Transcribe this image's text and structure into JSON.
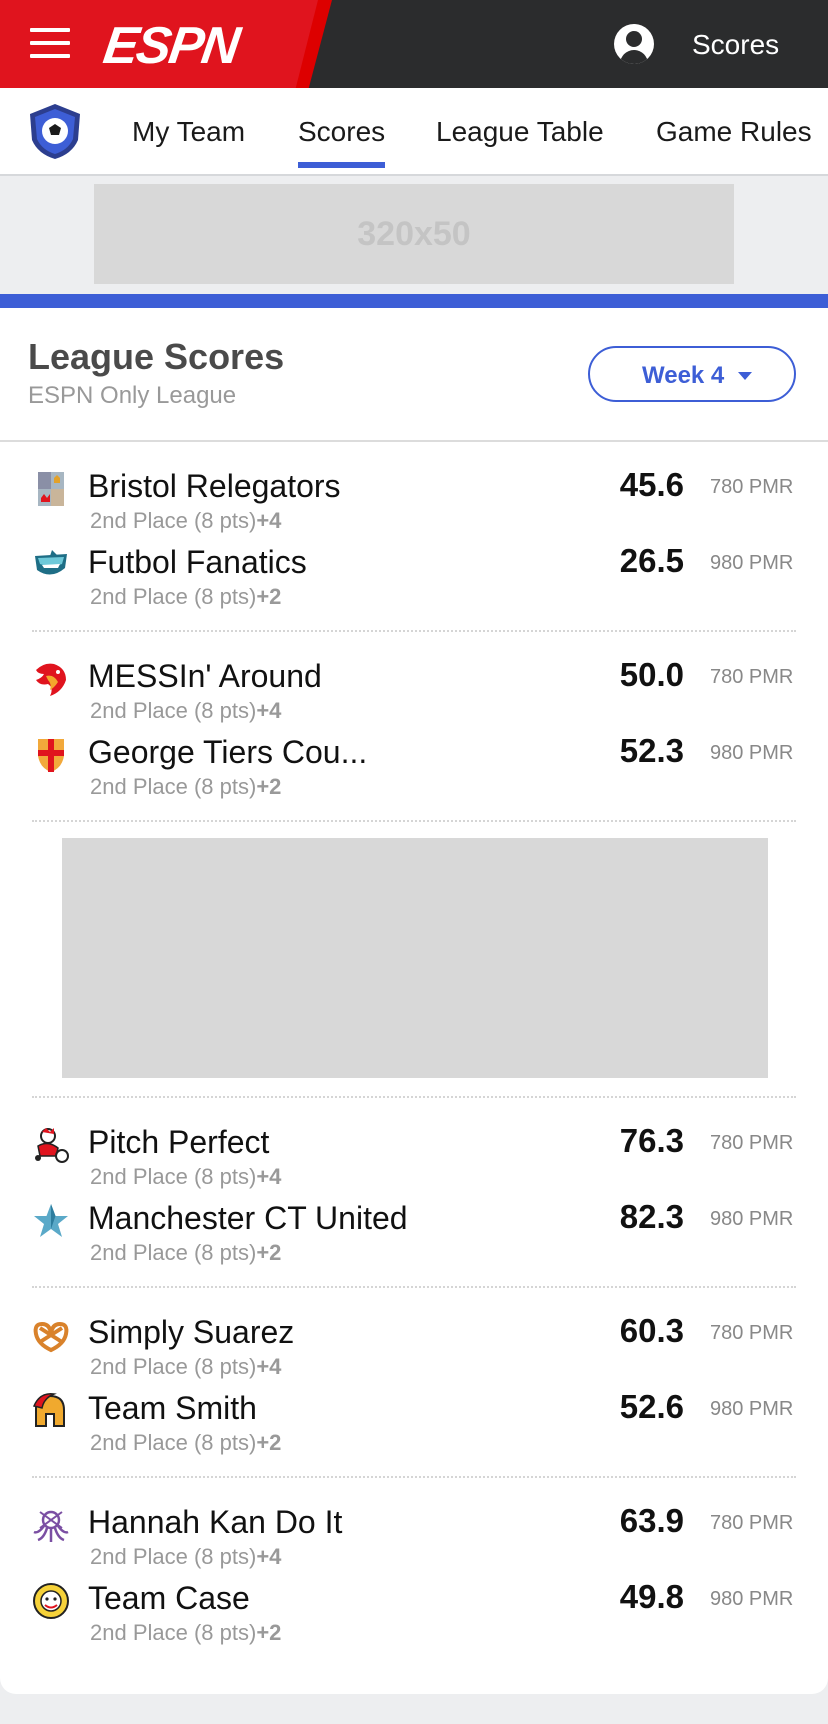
{
  "header": {
    "logo_text": "ESPN",
    "nav_label": "Scores"
  },
  "subnav": {
    "tabs": [
      {
        "label": "My Team"
      },
      {
        "label": "Scores"
      },
      {
        "label": "League Table"
      },
      {
        "label": "Game Rules"
      }
    ],
    "active_tab": "Scores"
  },
  "ad_banner": {
    "label": "320x50"
  },
  "league": {
    "title": "League Scores",
    "subtitle": "ESPN Only League",
    "week_label": "Week 4"
  },
  "matches": [
    {
      "home": {
        "name": "Bristol Relegators",
        "place": "2nd Place (8 pts)",
        "delta": "+4",
        "score": "45.6",
        "pmr": "780 PMR",
        "icon": "castle-crest-icon"
      },
      "away": {
        "name": "Futbol Fanatics",
        "place": "2nd Place (8 pts)",
        "delta": "+2",
        "score": "26.5",
        "pmr": "980 PMR",
        "icon": "shark-icon"
      }
    },
    {
      "home": {
        "name": "MESSIn' Around",
        "place": "2nd Place (8 pts)",
        "delta": "+4",
        "score": "50.0",
        "pmr": "780 PMR",
        "icon": "phoenix-icon"
      },
      "away": {
        "name": "George Tiers Cou...",
        "place": "2nd Place (8 pts)",
        "delta": "+2",
        "score": "52.3",
        "pmr": "980 PMR",
        "icon": "cross-shield-icon"
      }
    },
    {
      "home": {
        "name": "Pitch Perfect",
        "place": "2nd Place (8 pts)",
        "delta": "+4",
        "score": "76.3",
        "pmr": "780 PMR",
        "icon": "mascot-icon"
      },
      "away": {
        "name": "Manchester CT United",
        "place": "2nd Place (8 pts)",
        "delta": "+2",
        "score": "82.3",
        "pmr": "980 PMR",
        "icon": "star-icon"
      }
    },
    {
      "home": {
        "name": "Simply Suarez",
        "place": "2nd Place (8 pts)",
        "delta": "+4",
        "score": "60.3",
        "pmr": "780 PMR",
        "icon": "pretzel-icon"
      },
      "away": {
        "name": "Team Smith",
        "place": "2nd Place (8 pts)",
        "delta": "+2",
        "score": "52.6",
        "pmr": "980 PMR",
        "icon": "spartan-helmet-icon"
      }
    },
    {
      "home": {
        "name": "Hannah Kan Do It",
        "place": "2nd Place (8 pts)",
        "delta": "+4",
        "score": "63.9",
        "pmr": "780 PMR",
        "icon": "octopus-icon"
      },
      "away": {
        "name": "Team Case",
        "place": "2nd Place (8 pts)",
        "delta": "+2",
        "score": "49.8",
        "pmr": "980 PMR",
        "icon": "clown-face-icon"
      }
    }
  ],
  "colors": {
    "espn_red": "#e0141e",
    "header_dark": "#2b2c2d",
    "accent_blue": "#3d5ed6"
  }
}
